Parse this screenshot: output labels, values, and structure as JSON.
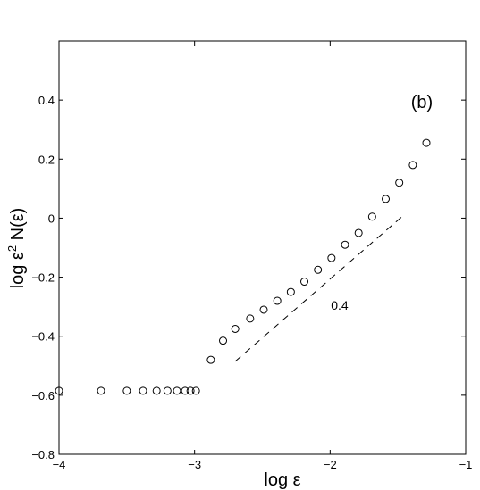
{
  "chart_data": {
    "type": "scatter",
    "xlabel": "log ε",
    "ylabel_base": "log ε",
    "ylabel_sup": "2",
    "ylabel_rest": " N(ε)",
    "xlim": [
      -4,
      -1
    ],
    "ylim": [
      -0.8,
      0.6
    ],
    "xticks": [
      -4,
      -3,
      -2,
      -1
    ],
    "xtick_labels": [
      "−4",
      "−3",
      "−2",
      "−1"
    ],
    "yticks": [
      -0.8,
      -0.6,
      -0.4,
      -0.2,
      0,
      0.2,
      0.4
    ],
    "ytick_labels": [
      "−0.8",
      "−0.6",
      "−0.4",
      "−0.2",
      "0",
      "0.2",
      "0.4"
    ],
    "grid": false,
    "panel_label": "(b)",
    "series": [
      {
        "marker": "open-circle",
        "points": [
          [
            -4.0,
            -0.585
          ],
          [
            -3.69,
            -0.585
          ],
          [
            -3.5,
            -0.585
          ],
          [
            -3.38,
            -0.585
          ],
          [
            -3.28,
            -0.585
          ],
          [
            -3.2,
            -0.585
          ],
          [
            -3.13,
            -0.585
          ],
          [
            -3.07,
            -0.585
          ],
          [
            -3.03,
            -0.585
          ],
          [
            -2.99,
            -0.585
          ],
          [
            -2.88,
            -0.48
          ],
          [
            -2.79,
            -0.415
          ],
          [
            -2.7,
            -0.375
          ],
          [
            -2.59,
            -0.34
          ],
          [
            -2.49,
            -0.31
          ],
          [
            -2.39,
            -0.28
          ],
          [
            -2.29,
            -0.25
          ],
          [
            -2.19,
            -0.215
          ],
          [
            -2.09,
            -0.175
          ],
          [
            -1.99,
            -0.135
          ],
          [
            -1.89,
            -0.09
          ],
          [
            -1.79,
            -0.05
          ],
          [
            -1.69,
            0.005
          ],
          [
            -1.59,
            0.065
          ],
          [
            -1.49,
            0.12
          ],
          [
            -1.39,
            0.18
          ],
          [
            -1.29,
            0.255
          ]
        ]
      }
    ],
    "reference_line": {
      "style": "dashed",
      "x": [
        -2.7,
        -1.47
      ],
      "y": [
        -0.485,
        0.005
      ],
      "label": "0.4",
      "label_x": -1.93,
      "label_y": -0.31
    }
  }
}
